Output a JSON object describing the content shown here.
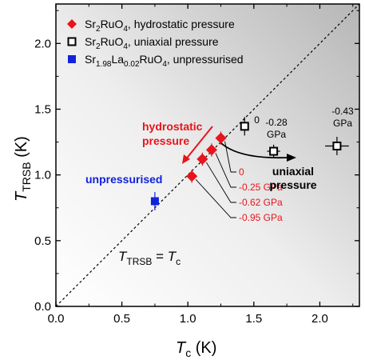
{
  "chart_data": {
    "type": "scatter",
    "xlabel": {
      "main": "T",
      "sub": "c",
      "unit": " (K)"
    },
    "ylabel": {
      "main": "T",
      "sub": "TRSB",
      "unit": " (K)"
    },
    "xlim": [
      0.0,
      2.3
    ],
    "ylim": [
      0.0,
      2.3
    ],
    "xticks": [
      0.0,
      0.5,
      1.0,
      1.5,
      2.0
    ],
    "yticks": [
      0.0,
      0.5,
      1.0,
      1.5,
      2.0
    ],
    "xtick_labels": [
      "0.0",
      "0.5",
      "1.0",
      "1.5",
      "2.0"
    ],
    "ytick_labels": [
      "0.0",
      "0.5",
      "1.0",
      "1.5",
      "2.0"
    ],
    "diagonal": {
      "style": "dashed",
      "label": {
        "lhs": "T",
        "lhs_sub": "TRSB",
        "eq": " = ",
        "rhs": "T",
        "rhs_sub": "c"
      }
    },
    "legend_position": "top-left",
    "series": [
      {
        "name": {
          "pre": "Sr",
          "sub1": "2",
          "mid": "RuO",
          "sub2": "4",
          "post": ", hydrostatic pressure"
        },
        "marker": "diamond",
        "color": "#e8141b",
        "points": [
          {
            "x": 1.25,
            "y": 1.28,
            "xerr": 0.04,
            "yerr": 0.05,
            "label": "0"
          },
          {
            "x": 1.18,
            "y": 1.19,
            "xerr": 0.04,
            "yerr": 0.05,
            "label": "-0.25 GPa"
          },
          {
            "x": 1.11,
            "y": 1.12,
            "xerr": 0.04,
            "yerr": 0.05,
            "label": "-0.62 GPa"
          },
          {
            "x": 1.03,
            "y": 0.99,
            "xerr": 0.04,
            "yerr": 0.05,
            "label": "-0.95 GPa"
          }
        ]
      },
      {
        "name": {
          "pre": "Sr",
          "sub1": "2",
          "mid": "RuO",
          "sub2": "4",
          "post": ", uniaxial pressure"
        },
        "marker": "open-square",
        "color": "#000000",
        "points": [
          {
            "x": 1.43,
            "y": 1.37,
            "xerr": 0.03,
            "yerr": 0.07,
            "label": "0"
          },
          {
            "x": 1.65,
            "y": 1.18,
            "xerr": 0.05,
            "yerr": 0.05,
            "label": [
              "-0.28",
              "GPa"
            ]
          },
          {
            "x": 2.13,
            "y": 1.22,
            "xerr": 0.09,
            "yerr": 0.07,
            "label": [
              "-0.43",
              "GPa"
            ]
          }
        ]
      },
      {
        "name": {
          "pre": "Sr",
          "sub1": "1.98",
          "mid": "La",
          "sub2": "0.02",
          "post": "RuO",
          "sub3": "4",
          "tail": ", unpressurised"
        },
        "marker": "filled-square",
        "color": "#1122dd",
        "points": [
          {
            "x": 0.75,
            "y": 0.8,
            "xerr": 0.02,
            "yerr": 0.07
          }
        ]
      }
    ],
    "annotations": {
      "hydrostatic": [
        "hydrostatic",
        "pressure"
      ],
      "uniaxial": [
        "uniaxial",
        "pressure"
      ],
      "unpressurised": "unpressurised"
    }
  }
}
